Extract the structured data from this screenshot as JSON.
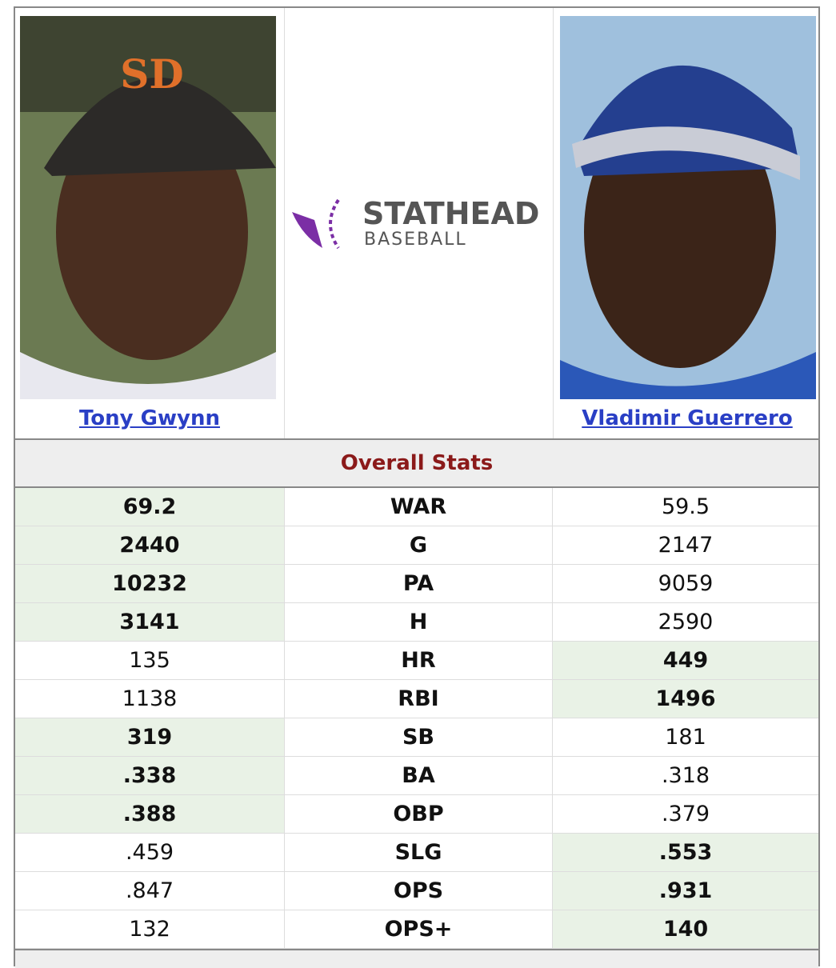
{
  "players": [
    {
      "name": "Tony Gwynn"
    },
    {
      "name": "Vladimir Guerrero"
    }
  ],
  "logo": {
    "line1": "STATHEAD",
    "line2": "BASEBALL"
  },
  "section_title": "Overall Stats",
  "stats": [
    {
      "label": "WAR",
      "left": "69.2",
      "right": "59.5",
      "highlight": "left"
    },
    {
      "label": "G",
      "left": "2440",
      "right": "2147",
      "highlight": "left"
    },
    {
      "label": "PA",
      "left": "10232",
      "right": "9059",
      "highlight": "left"
    },
    {
      "label": "H",
      "left": "3141",
      "right": "2590",
      "highlight": "left"
    },
    {
      "label": "HR",
      "left": "135",
      "right": "449",
      "highlight": "right"
    },
    {
      "label": "RBI",
      "left": "1138",
      "right": "1496",
      "highlight": "right"
    },
    {
      "label": "SB",
      "left": "319",
      "right": "181",
      "highlight": "left"
    },
    {
      "label": "BA",
      "left": ".338",
      "right": ".318",
      "highlight": "left"
    },
    {
      "label": "OBP",
      "left": ".388",
      "right": ".379",
      "highlight": "left"
    },
    {
      "label": "SLG",
      "left": ".459",
      "right": ".553",
      "highlight": "right"
    },
    {
      "label": "OPS",
      "left": ".847",
      "right": ".931",
      "highlight": "right"
    },
    {
      "label": "OPS+",
      "left": "132",
      "right": "140",
      "highlight": "right"
    }
  ]
}
